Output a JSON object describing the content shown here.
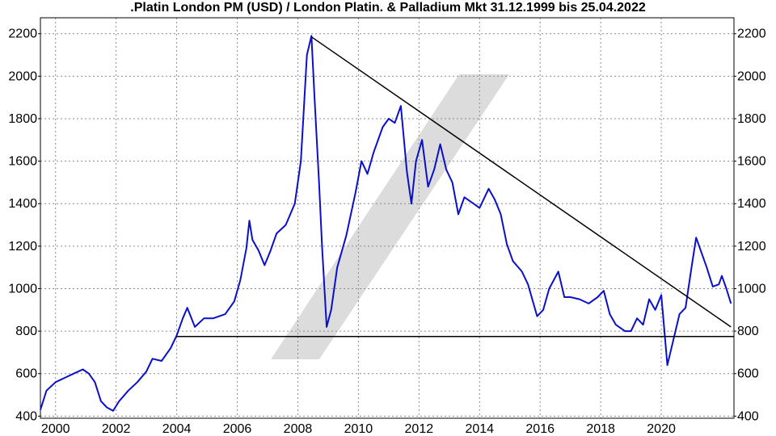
{
  "chart_data": {
    "type": "line",
    "title": ".Platin London PM (USD) / London Platin. & Palladium Mkt 31.12.1999 bis 25.04.2022",
    "xlabel": "",
    "ylabel": "",
    "x_ticks": [
      "2000",
      "2002",
      "2004",
      "2006",
      "2008",
      "2010",
      "2012",
      "2014",
      "2016",
      "2018",
      "2020"
    ],
    "y_ticks": [
      400,
      600,
      800,
      1000,
      1200,
      1400,
      1600,
      1800,
      2000,
      2200
    ],
    "xlim": [
      1999.5,
      2022.4
    ],
    "ylim": [
      390,
      2275
    ],
    "grid": true,
    "series": [
      {
        "color": "#0a10c8",
        "points": [
          [
            1999.5,
            430
          ],
          [
            1999.7,
            520
          ],
          [
            2000.0,
            560
          ],
          [
            2000.3,
            580
          ],
          [
            2000.6,
            600
          ],
          [
            2000.9,
            620
          ],
          [
            2001.1,
            600
          ],
          [
            2001.3,
            560
          ],
          [
            2001.5,
            470
          ],
          [
            2001.7,
            440
          ],
          [
            2001.9,
            425
          ],
          [
            2002.1,
            470
          ],
          [
            2002.4,
            520
          ],
          [
            2002.7,
            560
          ],
          [
            2003.0,
            610
          ],
          [
            2003.2,
            670
          ],
          [
            2003.5,
            660
          ],
          [
            2003.8,
            720
          ],
          [
            2004.0,
            780
          ],
          [
            2004.2,
            860
          ],
          [
            2004.35,
            910
          ],
          [
            2004.6,
            820
          ],
          [
            2004.9,
            860
          ],
          [
            2005.2,
            860
          ],
          [
            2005.6,
            880
          ],
          [
            2005.9,
            940
          ],
          [
            2006.1,
            1040
          ],
          [
            2006.3,
            1190
          ],
          [
            2006.4,
            1320
          ],
          [
            2006.5,
            1230
          ],
          [
            2006.7,
            1180
          ],
          [
            2006.9,
            1110
          ],
          [
            2007.1,
            1180
          ],
          [
            2007.3,
            1260
          ],
          [
            2007.6,
            1300
          ],
          [
            2007.9,
            1400
          ],
          [
            2008.1,
            1600
          ],
          [
            2008.3,
            2100
          ],
          [
            2008.45,
            2190
          ],
          [
            2008.55,
            1900
          ],
          [
            2008.7,
            1500
          ],
          [
            2008.8,
            1200
          ],
          [
            2008.95,
            820
          ],
          [
            2009.1,
            900
          ],
          [
            2009.3,
            1100
          ],
          [
            2009.6,
            1250
          ],
          [
            2009.9,
            1450
          ],
          [
            2010.1,
            1600
          ],
          [
            2010.3,
            1540
          ],
          [
            2010.5,
            1640
          ],
          [
            2010.8,
            1760
          ],
          [
            2011.0,
            1800
          ],
          [
            2011.2,
            1780
          ],
          [
            2011.4,
            1860
          ],
          [
            2011.6,
            1550
          ],
          [
            2011.75,
            1400
          ],
          [
            2011.9,
            1600
          ],
          [
            2012.1,
            1700
          ],
          [
            2012.3,
            1480
          ],
          [
            2012.5,
            1560
          ],
          [
            2012.7,
            1680
          ],
          [
            2012.9,
            1560
          ],
          [
            2013.1,
            1500
          ],
          [
            2013.3,
            1350
          ],
          [
            2013.5,
            1430
          ],
          [
            2013.8,
            1400
          ],
          [
            2014.0,
            1380
          ],
          [
            2014.3,
            1470
          ],
          [
            2014.5,
            1420
          ],
          [
            2014.7,
            1350
          ],
          [
            2014.9,
            1210
          ],
          [
            2015.1,
            1130
          ],
          [
            2015.4,
            1080
          ],
          [
            2015.6,
            1020
          ],
          [
            2015.9,
            870
          ],
          [
            2016.1,
            900
          ],
          [
            2016.3,
            1000
          ],
          [
            2016.6,
            1080
          ],
          [
            2016.8,
            960
          ],
          [
            2017.0,
            960
          ],
          [
            2017.3,
            950
          ],
          [
            2017.6,
            930
          ],
          [
            2017.9,
            960
          ],
          [
            2018.1,
            990
          ],
          [
            2018.3,
            880
          ],
          [
            2018.5,
            830
          ],
          [
            2018.8,
            800
          ],
          [
            2019.0,
            800
          ],
          [
            2019.2,
            860
          ],
          [
            2019.4,
            830
          ],
          [
            2019.6,
            950
          ],
          [
            2019.8,
            900
          ],
          [
            2020.0,
            970
          ],
          [
            2020.2,
            640
          ],
          [
            2020.4,
            760
          ],
          [
            2020.6,
            880
          ],
          [
            2020.8,
            910
          ],
          [
            2021.0,
            1100
          ],
          [
            2021.15,
            1240
          ],
          [
            2021.3,
            1180
          ],
          [
            2021.5,
            1100
          ],
          [
            2021.7,
            1010
          ],
          [
            2021.9,
            1020
          ],
          [
            2022.0,
            1060
          ],
          [
            2022.15,
            1000
          ],
          [
            2022.3,
            930
          ]
        ]
      }
    ],
    "trendlines": [
      {
        "color": "#000000",
        "from": [
          2008.45,
          2185
        ],
        "to": [
          2022.3,
          820
        ]
      },
      {
        "color": "#000000",
        "from": [
          2004.0,
          775
        ],
        "to": [
          2022.4,
          775
        ]
      }
    ],
    "watermark_color": "#dcdcdc"
  }
}
